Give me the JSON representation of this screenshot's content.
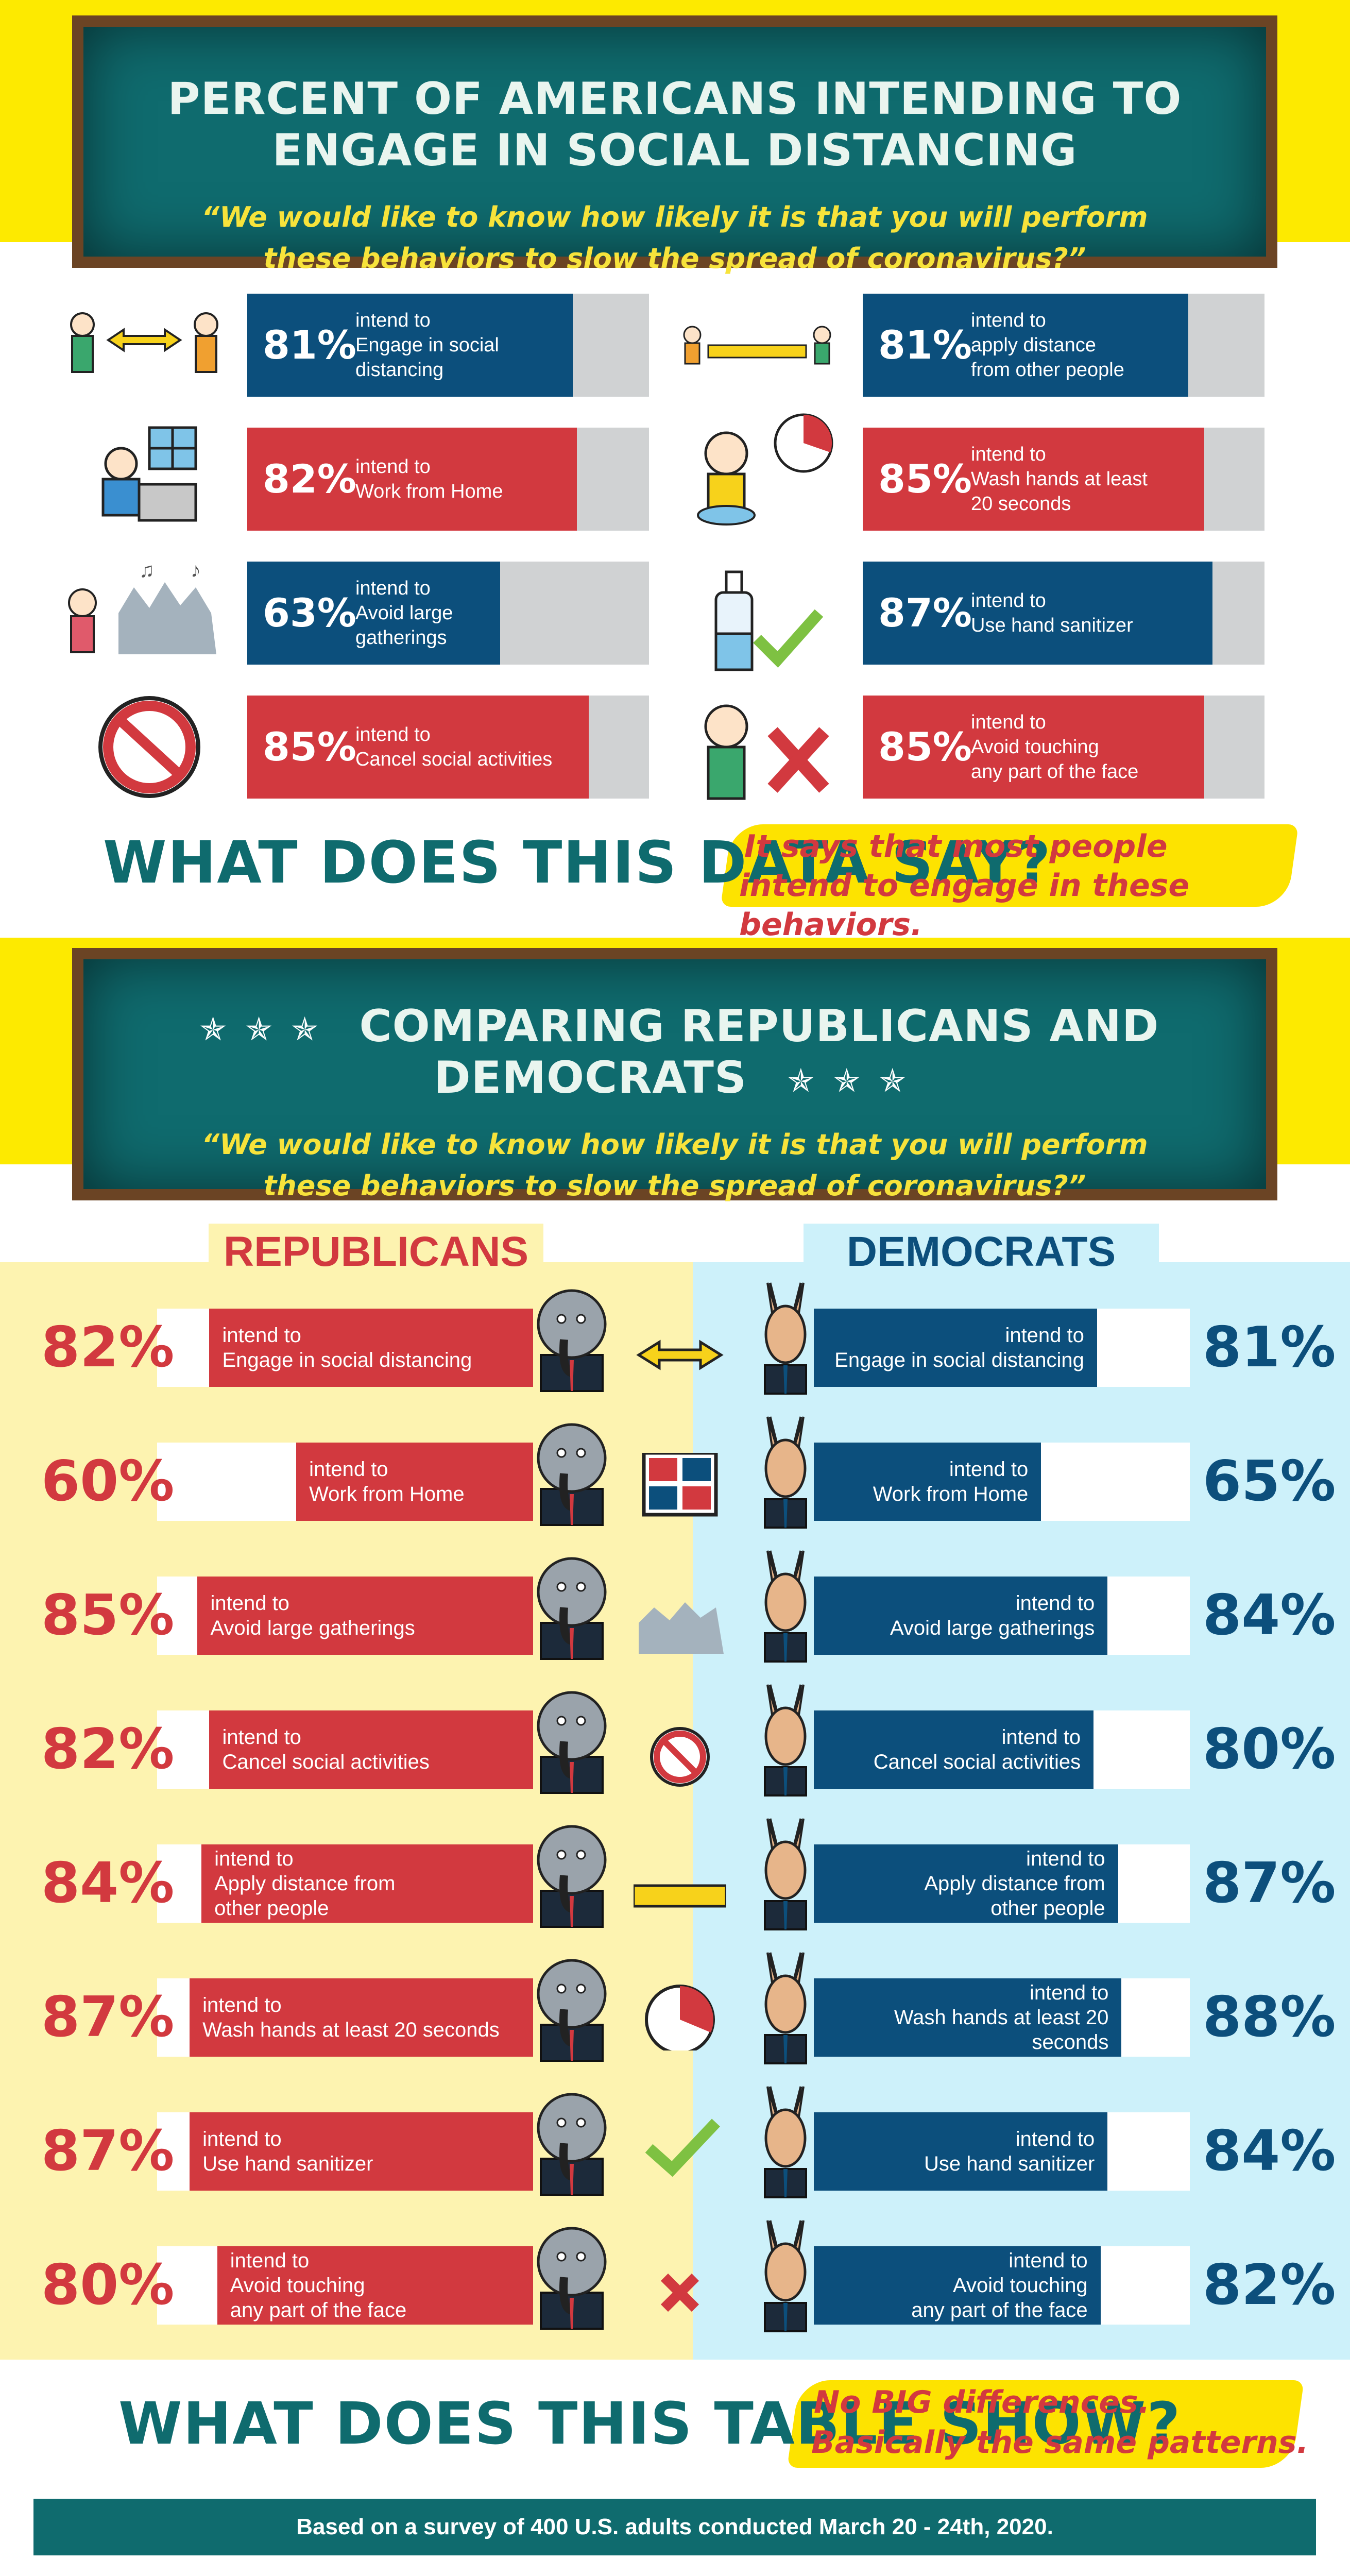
{
  "section1": {
    "title": "PERCENT OF AMERICANS INTENDING TO ENGAGE IN SOCIAL DISTANCING",
    "quote_line1": "“We would like to know how likely it is that you will perform",
    "quote_line2": "these behaviors to slow the spread of coronavirus?”"
  },
  "bars": [
    {
      "pct_label": "81%",
      "value": 81,
      "color": "#0c4f7c",
      "l1": "intend to",
      "l2": "Engage in social",
      "l3": "distancing",
      "icon": "people-distance-icon"
    },
    {
      "pct_label": "81%",
      "value": 81,
      "color": "#0c4f7c",
      "l1": "intend to",
      "l2": "apply distance",
      "l3": "from other people",
      "icon": "ruler-distance-icon"
    },
    {
      "pct_label": "82%",
      "value": 82,
      "color": "#d2393f",
      "l1": "intend to",
      "l2": "Work from Home",
      "l3": "",
      "icon": "laptop-home-icon"
    },
    {
      "pct_label": "85%",
      "value": 85,
      "color": "#d2393f",
      "l1": "intend to",
      "l2": "Wash hands at least",
      "l3": "20 seconds",
      "icon": "hand-wash-timer-icon"
    },
    {
      "pct_label": "63%",
      "value": 63,
      "color": "#0c4f7c",
      "l1": "intend to",
      "l2": "Avoid large",
      "l3": "gatherings",
      "icon": "crowd-icon"
    },
    {
      "pct_label": "87%",
      "value": 87,
      "color": "#0c4f7c",
      "l1": "intend to",
      "l2": "Use hand sanitizer",
      "l3": "",
      "icon": "sanitizer-check-icon"
    },
    {
      "pct_label": "85%",
      "value": 85,
      "color": "#d2393f",
      "l1": "intend to",
      "l2": "Cancel social activities",
      "l3": "",
      "icon": "no-party-icon"
    },
    {
      "pct_label": "85%",
      "value": 85,
      "color": "#d2393f",
      "l1": "intend to",
      "l2": "Avoid touching",
      "l3": "any part of the face",
      "icon": "face-touch-x-icon"
    }
  ],
  "q1": {
    "question": "WHAT DOES THIS DATA SAY?",
    "answer_line1": "It says that most people",
    "answer_line2": "intend to engage in these behaviors."
  },
  "section2": {
    "title": "COMPARING REPUBLICANS AND DEMOCRATS",
    "quote_line1": "“We would like to know how likely it is that you will perform",
    "quote_line2": "these behaviors to slow the spread of coronavirus?”",
    "star": "✯"
  },
  "republicans_label": "REPUBLICANS",
  "democrats_label": "DEMOCRATS",
  "chart_data": {
    "type": "bar",
    "categories": [
      "Engage in social distancing",
      "Work from Home",
      "Avoid large gatherings",
      "Cancel social activities",
      "Apply distance from other people",
      "Wash hands at least 20 seconds",
      "Use hand sanitizer",
      "Avoid touching any part of the face"
    ],
    "series": [
      {
        "name": "REPUBLICANS",
        "values": [
          82,
          60,
          85,
          82,
          84,
          87,
          87,
          80
        ],
        "color": "#d2393f"
      },
      {
        "name": "DEMOCRATS",
        "values": [
          81,
          65,
          84,
          80,
          87,
          88,
          84,
          82
        ],
        "color": "#0c4f7c"
      }
    ],
    "title": "COMPARING REPUBLICANS AND DEMOCRATS",
    "ylim": [
      0,
      100
    ]
  },
  "rows": [
    {
      "rep": "82%",
      "dem": "81%",
      "rep_lines": [
        "intend to",
        "Engage in social distancing"
      ],
      "dem_lines": [
        "intend to",
        "Engage in social distancing"
      ]
    },
    {
      "rep": "60%",
      "dem": "65%",
      "rep_lines": [
        "intend to",
        "Work from Home"
      ],
      "dem_lines": [
        "intend to",
        "Work from Home"
      ]
    },
    {
      "rep": "85%",
      "dem": "84%",
      "rep_lines": [
        "intend to",
        "Avoid large gatherings"
      ],
      "dem_lines": [
        "intend to",
        "Avoid large gatherings"
      ]
    },
    {
      "rep": "82%",
      "dem": "80%",
      "rep_lines": [
        "intend to",
        "Cancel social activities"
      ],
      "dem_lines": [
        "intend to",
        "Cancel social activities"
      ]
    },
    {
      "rep": "84%",
      "dem": "87%",
      "rep_lines": [
        "intend to",
        "Apply distance from",
        "other people"
      ],
      "dem_lines": [
        "intend to",
        "Apply distance from",
        "other people"
      ]
    },
    {
      "rep": "87%",
      "dem": "88%",
      "rep_lines": [
        "intend to",
        "Wash hands at least 20 seconds"
      ],
      "dem_lines": [
        "intend to",
        "Wash hands at least 20 seconds"
      ]
    },
    {
      "rep": "87%",
      "dem": "84%",
      "rep_lines": [
        "intend to",
        "Use hand sanitizer"
      ],
      "dem_lines": [
        "intend to",
        "Use hand sanitizer"
      ]
    },
    {
      "rep": "80%",
      "dem": "82%",
      "rep_lines": [
        "intend to",
        "Avoid touching",
        "any part of the face"
      ],
      "dem_lines": [
        "intend to",
        "Avoid touching",
        "any part of the face"
      ]
    }
  ],
  "q2": {
    "question": "WHAT DOES THIS TABLE SHOW?",
    "answer_line1": "No BIG differences.",
    "answer_line2": "Basically the same patterns."
  },
  "footer": "Based on a survey of 400 U.S. adults conducted March 20 - 24th, 2020.",
  "colors": {
    "red": "#d2393f",
    "blue": "#0c4f7c",
    "teal": "#0f6b6e",
    "yellow": "#fdea00",
    "rep_bg": "#fdf3b0",
    "dem_bg": "#cdf1fa"
  }
}
